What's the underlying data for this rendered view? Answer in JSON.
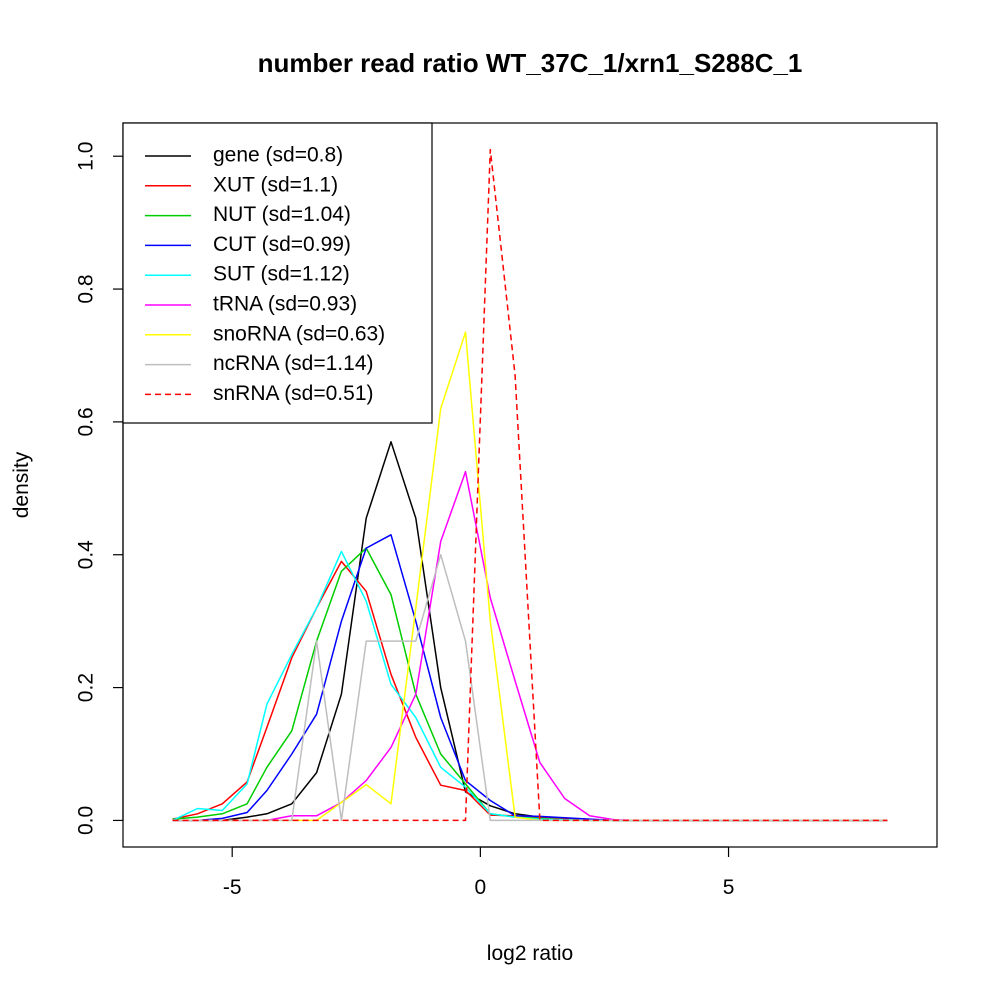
{
  "chart_data": {
    "type": "line",
    "title": "number read ratio WT_37C_1/xrn1_S288C_1",
    "xlabel": "log2 ratio",
    "ylabel": "density",
    "xlim": [
      -7.2,
      9.2
    ],
    "ylim": [
      -0.04,
      1.05
    ],
    "xticks": [
      -5,
      0,
      5
    ],
    "xtick_labels": [
      "-5",
      "0",
      "5"
    ],
    "yticks": [
      0.0,
      0.2,
      0.4,
      0.6,
      0.8,
      1.0
    ],
    "ytick_labels": [
      "0.0",
      "0.2",
      "0.4",
      "0.6",
      "0.8",
      "1.0"
    ],
    "grid": false,
    "legend_position": "top-left",
    "x": [
      -6.2,
      -5.7,
      -5.2,
      -4.7,
      -4.3,
      -3.8,
      -3.3,
      -2.8,
      -2.3,
      -1.8,
      -1.3,
      -0.8,
      -0.3,
      0.2,
      0.7,
      1.2,
      1.7,
      2.2,
      2.7,
      3.2,
      3.7,
      4.2,
      4.7,
      5.2,
      5.7,
      6.2,
      6.7,
      7.2,
      7.7,
      8.2
    ],
    "series": [
      {
        "name": "gene (sd=0.8)",
        "color": "#000000",
        "dash": "solid",
        "values": [
          0,
          0,
          0,
          0.005,
          0.01,
          0.025,
          0.072,
          0.19,
          0.455,
          0.57,
          0.455,
          0.2,
          0.043,
          0.022,
          0.01,
          0.005,
          0.003,
          0.001,
          0,
          0,
          0,
          0,
          0,
          0,
          0,
          0,
          0,
          0,
          0,
          0
        ]
      },
      {
        "name": "XUT (sd=1.1)",
        "color": "#ff0000",
        "dash": "solid",
        "values": [
          0.002,
          0.01,
          0.025,
          0.058,
          0.14,
          0.245,
          0.32,
          0.39,
          0.345,
          0.22,
          0.125,
          0.053,
          0.045,
          0.008,
          0.007,
          0.004,
          0.002,
          0.001,
          0,
          0,
          0,
          0,
          0,
          0,
          0,
          0,
          0,
          0,
          0,
          0
        ]
      },
      {
        "name": "NUT (sd=1.04)",
        "color": "#00cd00",
        "dash": "solid",
        "values": [
          0.002,
          0.005,
          0.01,
          0.025,
          0.08,
          0.135,
          0.27,
          0.375,
          0.41,
          0.34,
          0.19,
          0.1,
          0.055,
          0.01,
          0.005,
          0.003,
          0.001,
          0,
          0,
          0,
          0,
          0,
          0,
          0,
          0,
          0,
          0,
          0,
          0,
          0
        ]
      },
      {
        "name": "CUT (sd=0.99)",
        "color": "#0000ff",
        "dash": "solid",
        "values": [
          0,
          0,
          0.003,
          0.012,
          0.045,
          0.1,
          0.16,
          0.3,
          0.41,
          0.43,
          0.3,
          0.155,
          0.06,
          0.03,
          0.007,
          0.006,
          0.004,
          0.002,
          0,
          0,
          0,
          0,
          0,
          0,
          0,
          0,
          0,
          0,
          0,
          0
        ]
      },
      {
        "name": "SUT (sd=1.12)",
        "color": "#00ffff",
        "dash": "solid",
        "values": [
          0,
          0.018,
          0.015,
          0.055,
          0.175,
          0.25,
          0.32,
          0.405,
          0.33,
          0.205,
          0.155,
          0.08,
          0.05,
          0.01,
          0.005,
          0.002,
          0.001,
          0,
          0,
          0,
          0,
          0,
          0,
          0,
          0,
          0,
          0,
          0,
          0,
          0
        ]
      },
      {
        "name": "tRNA (sd=0.93)",
        "color": "#ff00ff",
        "dash": "solid",
        "values": [
          0,
          0,
          0,
          0,
          0,
          0.007,
          0.007,
          0.027,
          0.06,
          0.11,
          0.19,
          0.42,
          0.525,
          0.335,
          0.21,
          0.087,
          0.033,
          0.007,
          0.001,
          0,
          0,
          0,
          0,
          0,
          0,
          0,
          0,
          0,
          0,
          0
        ]
      },
      {
        "name": "snoRNA (sd=0.63)",
        "color": "#ffff00",
        "dash": "solid",
        "values": [
          0,
          0,
          0,
          0,
          0,
          0,
          0,
          0.027,
          0.054,
          0.025,
          0.32,
          0.62,
          0.735,
          0.3,
          0.005,
          0,
          0,
          0,
          0,
          0,
          0,
          0,
          0,
          0,
          0,
          0,
          0,
          0,
          0,
          0
        ]
      },
      {
        "name": "ncRNA (sd=1.14)",
        "color": "#bebebe",
        "dash": "solid",
        "values": [
          0,
          0,
          0,
          0,
          0,
          0,
          0.27,
          0,
          0.27,
          0.27,
          0.27,
          0.4,
          0.27,
          0,
          0,
          0,
          0,
          0,
          0,
          0,
          0,
          0,
          0,
          0,
          0,
          0,
          0,
          0,
          0,
          0
        ]
      },
      {
        "name": "snRNA (sd=0.51)",
        "color": "#ff0000",
        "dash": "dashed",
        "values": [
          0,
          0,
          0,
          0,
          0,
          0,
          0,
          0,
          0,
          0,
          0,
          0,
          0,
          1.01,
          0.67,
          0,
          0,
          0,
          0,
          0,
          0,
          0,
          0,
          0,
          0,
          0,
          0,
          0,
          0,
          0
        ]
      }
    ]
  }
}
